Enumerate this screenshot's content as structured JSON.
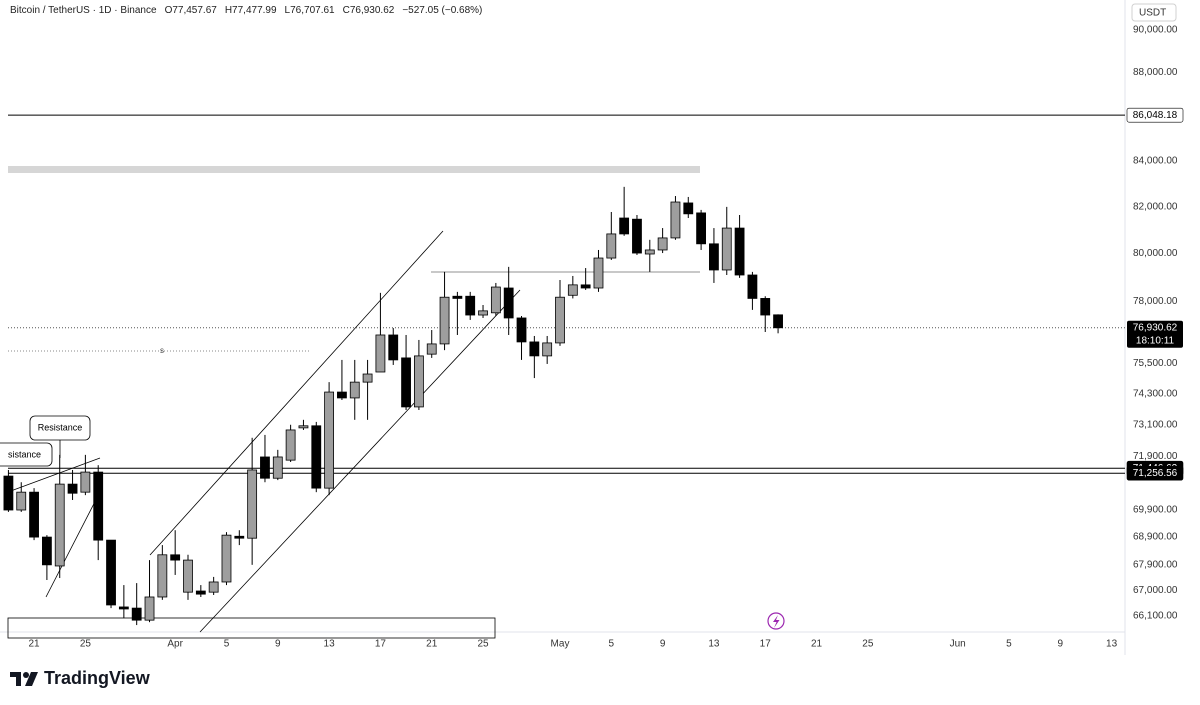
{
  "chart_data": {
    "type": "candlestick",
    "title": "Bitcoin / TetherUS · 1D · Binance",
    "ohlc_legend": [
      "O77,457.67",
      "H77,477.99",
      "L76,707.61",
      "C76,930.62",
      "−527.05 (−0.68%)"
    ],
    "currency": "USDT",
    "log_scale": true,
    "grid": false,
    "up_color": "#9e9e9e",
    "down_color": "#000000",
    "categories": [
      null,
      null,
      "21",
      null,
      null,
      null,
      "25",
      null,
      null,
      null,
      null,
      null,
      null,
      "Apr",
      null,
      null,
      null,
      "5",
      null,
      null,
      null,
      "9",
      null,
      null,
      null,
      "13",
      null,
      null,
      null,
      "17",
      null,
      null,
      null,
      "21",
      null,
      null,
      null,
      "25",
      null,
      null,
      null,
      null,
      null,
      "May",
      null,
      null,
      null,
      "5",
      null,
      null,
      null,
      "9",
      null,
      null,
      null,
      "13",
      null,
      null,
      null,
      "17",
      null,
      null,
      null,
      "21",
      null,
      null,
      null,
      "25",
      null,
      null,
      null,
      null,
      null,
      null,
      "Jun",
      null,
      null,
      null,
      "5",
      null,
      null,
      null,
      "9",
      null,
      null,
      null,
      "13"
    ],
    "open": [
      71150,
      69890,
      70550,
      68900,
      67860,
      70850,
      70550,
      71300,
      68790,
      66410,
      66370,
      65950,
      66760,
      68260,
      66930,
      66970,
      66930,
      67290,
      68930,
      68860,
      71870,
      71070,
      71750,
      72980,
      73060,
      70700,
      74370,
      74140,
      74760,
      75160,
      76640,
      75720,
      73790,
      75870,
      76280,
      78220,
      78220,
      77450,
      77540,
      78560,
      77330,
      76360,
      75800,
      76320,
      78260,
      78690,
      78560,
      79810,
      81510,
      81460,
      79980,
      80150,
      80660,
      82160,
      81730,
      80410,
      79310,
      81080,
      79100,
      78130,
      77457.67,
      null,
      null,
      null,
      null,
      null,
      null,
      null,
      null,
      null,
      null,
      null,
      null,
      null,
      null,
      null,
      null,
      null,
      null,
      null,
      null,
      null,
      null,
      null,
      null,
      null,
      null
    ],
    "high": [
      71380,
      70920,
      70700,
      68970,
      71950,
      71380,
      71950,
      71560,
      68790,
      67180,
      67250,
      68070,
      68610,
      69150,
      68260,
      67180,
      67470,
      69080,
      69150,
      72600,
      72710,
      72140,
      73100,
      73290,
      73210,
      74760,
      75640,
      75640,
      75640,
      78360,
      76920,
      76640,
      76440,
      76840,
      79230,
      78400,
      78400,
      77860,
      78770,
      79440,
      77410,
      76600,
      76600,
      78890,
      79060,
      79390,
      80150,
      81770,
      82860,
      81640,
      80580,
      81080,
      82460,
      82420,
      81860,
      81080,
      81990,
      81640,
      79230,
      78220,
      77477.99,
      null,
      null,
      null,
      null,
      null,
      null,
      null,
      null,
      null,
      null,
      null,
      null,
      null,
      null,
      null,
      null,
      null,
      null,
      null,
      null,
      null,
      null,
      null,
      null,
      null,
      null
    ],
    "low": [
      69820,
      69820,
      68790,
      67360,
      67430,
      70260,
      70440,
      68070,
      66370,
      66020,
      65780,
      65880,
      66660,
      67540,
      66660,
      66760,
      66830,
      67180,
      68610,
      67900,
      70920,
      71000,
      71680,
      72900,
      70550,
      70440,
      74060,
      73290,
      73290,
      75160,
      75440,
      73670,
      73670,
      75720,
      76030,
      76640,
      77250,
      77330,
      77410,
      76640,
      75640,
      74920,
      75480,
      76200,
      78130,
      78480,
      78400,
      79730,
      80750,
      79940,
      79230,
      80020,
      80580,
      81510,
      80150,
      78770,
      79100,
      78980,
      77660,
      76760,
      76707.61,
      null,
      null,
      null,
      null,
      null,
      null,
      null,
      null,
      null,
      null,
      null,
      null,
      null,
      null,
      null,
      null,
      null,
      null,
      null,
      null,
      null,
      null,
      null,
      null,
      null,
      null
    ],
    "close": [
      69890,
      70550,
      68900,
      67900,
      70850,
      70510,
      71300,
      68790,
      66480,
      66340,
      65950,
      66760,
      68260,
      68070,
      68070,
      66860,
      67290,
      68970,
      68860,
      71380,
      71070,
      71870,
      72900,
      73060,
      70700,
      74370,
      74140,
      74760,
      75080,
      76640,
      75640,
      73790,
      75800,
      76280,
      78180,
      78130,
      77450,
      77620,
      78600,
      77330,
      76360,
      75800,
      76320,
      78180,
      78690,
      78560,
      79810,
      80830,
      80830,
      80020,
      80150,
      80660,
      82200,
      81690,
      80410,
      79310,
      81080,
      79100,
      78130,
      77450,
      76930.62,
      null,
      null,
      null,
      null,
      null,
      null,
      null,
      null,
      null,
      null,
      null,
      null,
      null,
      null,
      null,
      null,
      null,
      null,
      null,
      null,
      null,
      null,
      null,
      null,
      null,
      null
    ],
    "ylim": [
      65540,
      91430
    ],
    "yticks": [
      {
        "value": 90000,
        "label": "90,000.00"
      },
      {
        "value": 88000,
        "label": "88,000.00"
      },
      {
        "value": 84000,
        "label": "84,000.00"
      },
      {
        "value": 82000,
        "label": "82,000.00"
      },
      {
        "value": 80000,
        "label": "80,000.00"
      },
      {
        "value": 78000,
        "label": "78,000.00"
      },
      {
        "value": 75500,
        "label": "75,500.00"
      },
      {
        "value": 74300,
        "label": "74,300.00"
      },
      {
        "value": 73100,
        "label": "73,100.00"
      },
      {
        "value": 71900,
        "label": "71,900.00"
      },
      {
        "value": 69900,
        "label": "69,900.00"
      },
      {
        "value": 68900,
        "label": "68,900.00"
      },
      {
        "value": 67900,
        "label": "67,900.00"
      },
      {
        "value": 67000,
        "label": "67,000.00"
      },
      {
        "value": 66100,
        "label": "66,100.00"
      }
    ],
    "price_lines": [
      {
        "value": 86048.18,
        "label": "86,048.18",
        "label_fill": "#ffffff",
        "label_color": "#000000"
      },
      {
        "value": 71446.62,
        "label": "71,446.62",
        "label_fill": "#000000",
        "label_color": "#ffffff"
      },
      {
        "value": 71256.56,
        "label": "71,256.56",
        "label_fill": "#000000",
        "label_color": "#ffffff"
      }
    ],
    "current_price": {
      "value": 76930.62,
      "label": "76,930.62",
      "countdown": "18:10:11"
    },
    "annotations": [
      "Resistance",
      "sistance",
      "s"
    ]
  },
  "footer": {
    "logo": "TradingView"
  }
}
